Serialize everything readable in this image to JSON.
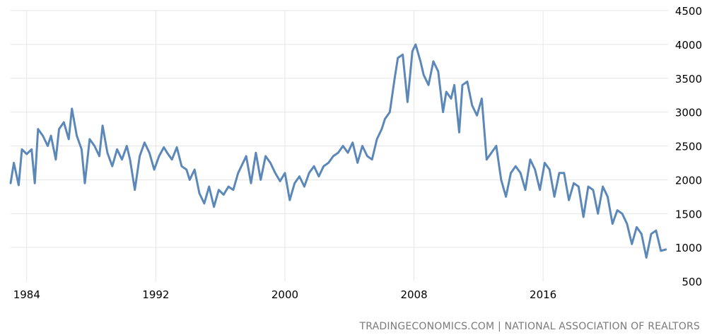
{
  "colors": {
    "series": "#5b88b8",
    "grid": "#e6e6e6"
  },
  "chart_data": {
    "type": "line",
    "title": "",
    "xlabel": "",
    "ylabel": "",
    "y_axis_side": "right",
    "grid": true,
    "legend": "none",
    "xlim": [
      1983.0,
      2023.75
    ],
    "ylim": [
      500,
      4500
    ],
    "x_ticks": [
      1984,
      1992,
      2000,
      2008,
      2016
    ],
    "y_ticks": [
      500,
      1000,
      1500,
      2000,
      2500,
      3000,
      3500,
      4000,
      4500
    ],
    "source": "TRADINGECONOMICS.COM | NATIONAL ASSOCIATION OF REALTORS",
    "series": [
      {
        "x": [
          1983.0,
          1983.2,
          1983.5,
          1983.7,
          1984.0,
          1984.3,
          1984.5,
          1984.7,
          1985.0,
          1985.3,
          1985.5,
          1985.8,
          1986.0,
          1986.3,
          1986.6,
          1986.8,
          1987.1,
          1987.4,
          1987.6,
          1987.9,
          1988.2,
          1988.5,
          1988.7,
          1989.0,
          1989.3,
          1989.6,
          1989.9,
          1990.2,
          1990.4,
          1990.7,
          1991.0,
          1991.3,
          1991.6,
          1991.9,
          1992.2,
          1992.5,
          1992.7,
          1993.0,
          1993.3,
          1993.6,
          1993.9,
          1994.1,
          1994.4,
          1994.7,
          1995.0,
          1995.3,
          1995.6,
          1995.9,
          1996.2,
          1996.5,
          1996.8,
          1997.1,
          1997.3,
          1997.6,
          1997.9,
          1998.2,
          1998.5,
          1998.8,
          1999.1,
          1999.4,
          1999.7,
          2000.0,
          2000.3,
          2000.6,
          2000.9,
          2001.2,
          2001.5,
          2001.8,
          2002.1,
          2002.4,
          2002.7,
          2003.0,
          2003.3,
          2003.6,
          2003.9,
          2004.2,
          2004.5,
          2004.8,
          2005.1,
          2005.4,
          2005.7,
          2006.0,
          2006.2,
          2006.5,
          2006.8,
          2007.0,
          2007.3,
          2007.6,
          2007.9,
          2008.1,
          2008.4,
          2008.6,
          2008.9,
          2009.2,
          2009.5,
          2009.8,
          2010.0,
          2010.3,
          2010.5,
          2010.8,
          2011.0,
          2011.3,
          2011.6,
          2011.9,
          2012.2,
          2012.5,
          2012.8,
          2013.1,
          2013.4,
          2013.7,
          2014.0,
          2014.3,
          2014.6,
          2014.9,
          2015.2,
          2015.5,
          2015.8,
          2016.1,
          2016.4,
          2016.7,
          2017.0,
          2017.3,
          2017.6,
          2017.9,
          2018.2,
          2018.5,
          2018.8,
          2019.1,
          2019.4,
          2019.7,
          2020.0,
          2020.3,
          2020.6,
          2020.9,
          2021.2,
          2021.5,
          2021.8,
          2022.1,
          2022.4,
          2022.7,
          2023.0,
          2023.3,
          2023.6
        ],
        "values": [
          1950,
          2250,
          1920,
          2450,
          2380,
          2450,
          1950,
          2750,
          2650,
          2500,
          2650,
          2300,
          2750,
          2850,
          2600,
          3050,
          2650,
          2450,
          1950,
          2600,
          2500,
          2350,
          2800,
          2400,
          2200,
          2450,
          2300,
          2500,
          2300,
          1850,
          2350,
          2550,
          2400,
          2150,
          2350,
          2480,
          2400,
          2300,
          2480,
          2200,
          2150,
          2000,
          2150,
          1800,
          1650,
          1900,
          1600,
          1850,
          1780,
          1900,
          1850,
          2100,
          2200,
          2350,
          1950,
          2400,
          2000,
          2350,
          2250,
          2100,
          1980,
          2100,
          1700,
          1950,
          2050,
          1900,
          2100,
          2200,
          2050,
          2200,
          2250,
          2350,
          2400,
          2500,
          2400,
          2550,
          2250,
          2500,
          2350,
          2300,
          2600,
          2750,
          2900,
          3000,
          3500,
          3800,
          3850,
          3150,
          3900,
          4000,
          3750,
          3550,
          3400,
          3750,
          3600,
          3000,
          3300,
          3200,
          3400,
          2700,
          3400,
          3450,
          3100,
          2950,
          3200,
          2300,
          2400,
          2500,
          2000,
          1750,
          2100,
          2200,
          2100,
          1850,
          2300,
          2150,
          1850,
          2250,
          2150,
          1750,
          2100,
          2100,
          1700,
          1950,
          1900,
          1450,
          1900,
          1850,
          1500,
          1900,
          1750,
          1350,
          1550,
          1500,
          1350,
          1050,
          1300,
          1200,
          850,
          1200,
          1250,
          950,
          970
        ],
        "color": "#5b88b8"
      }
    ]
  }
}
